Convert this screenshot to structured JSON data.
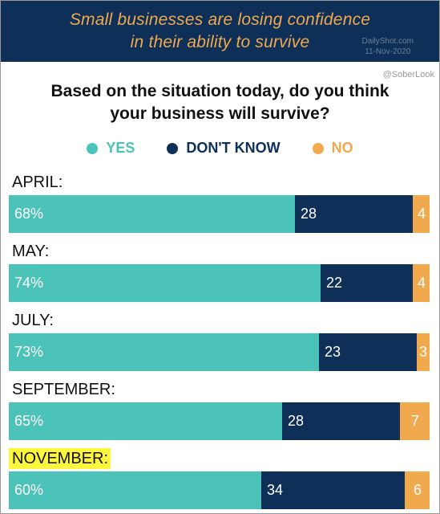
{
  "banner": {
    "title_line1": "Small businesses are losing confidence",
    "title_line2": "in their ability to survive",
    "watermark_line1": "DailyShot.com",
    "watermark_line2": "11-Nov-2020"
  },
  "handle": "@SoberLook",
  "chart_data": {
    "type": "bar",
    "orientation": "horizontal-stacked-100",
    "title_line1": "Based on the situation today, do you think",
    "title_line2": "your business will survive?",
    "legend": [
      {
        "key": "yes",
        "label": "YES",
        "color": "#4cc3b8"
      },
      {
        "key": "dont_know",
        "label": "DON'T KNOW",
        "color": "#0d2f58"
      },
      {
        "key": "no",
        "label": "NO",
        "color": "#f0a94d"
      }
    ],
    "categories": [
      "APRIL:",
      "MAY:",
      "JULY:",
      "SEPTEMBER:",
      "NOVEMBER:"
    ],
    "highlight": "NOVEMBER:",
    "series": [
      {
        "key": "yes",
        "name": "YES",
        "values": [
          68,
          74,
          73,
          65,
          60
        ],
        "labels": [
          "68%",
          "74%",
          "73%",
          "65%",
          "60%"
        ]
      },
      {
        "key": "dont_know",
        "name": "DON'T KNOW",
        "values": [
          28,
          22,
          23,
          28,
          34
        ],
        "labels": [
          "28",
          "22",
          "23",
          "28",
          "34"
        ]
      },
      {
        "key": "no",
        "name": "NO",
        "values": [
          4,
          4,
          3,
          7,
          6
        ],
        "labels": [
          "4",
          "4",
          "3",
          "7",
          "6"
        ]
      }
    ]
  }
}
